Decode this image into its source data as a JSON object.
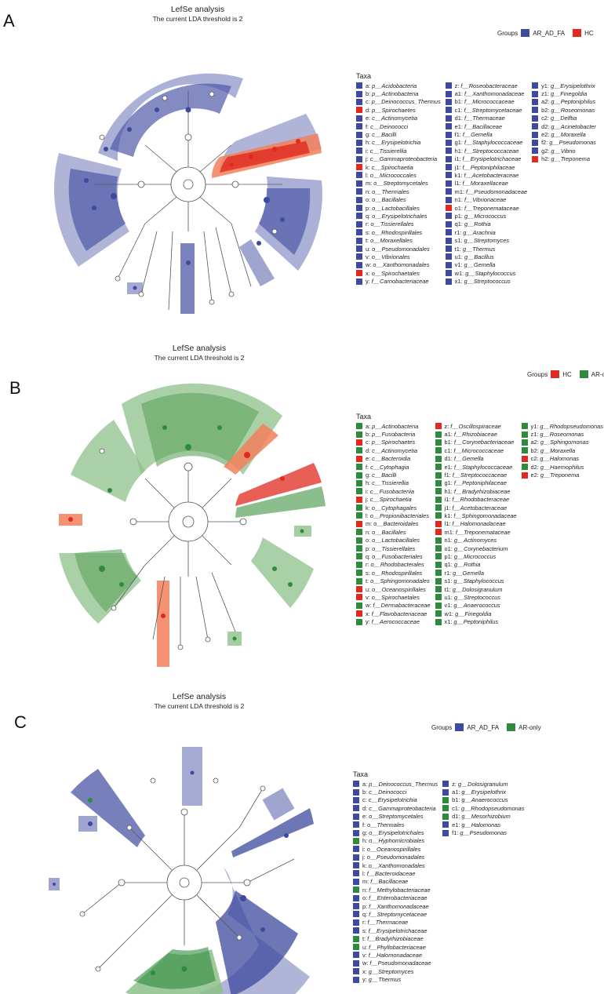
{
  "colors": {
    "blue": "#3d4a9e",
    "red": "#e0291f",
    "green": "#2e8b3e",
    "blue_band": "#8f95c8",
    "red_band": "#f2805c",
    "green_band": "#8dc08a"
  },
  "panels": [
    {
      "label": "A",
      "title": "LefSe analysis",
      "subtitle": "The current LDA threshold is 2",
      "groups_label": "Groups",
      "groups": [
        {
          "name": "AR_AD_FA",
          "color": "#3d4a9e"
        },
        {
          "name": "HC",
          "color": "#e0291f"
        }
      ],
      "taxa_header": "Taxa",
      "taxa": [
        [
          [
            "a:",
            "p__Acidobacteria",
            "b"
          ],
          [
            "b:",
            "p__Actinobacteria",
            "b"
          ],
          [
            "c:",
            "p__Deinococcus_Thermus",
            "b"
          ],
          [
            "d:",
            "p__Spirochaetes",
            "r"
          ],
          [
            "e:",
            "c__Actinomycetia",
            "b"
          ],
          [
            "f:",
            "c__Deinococci",
            "b"
          ],
          [
            "g:",
            "c__Bacilli",
            "b"
          ],
          [
            "h:",
            "c__Erysipelotrichia",
            "b"
          ],
          [
            "i:",
            "c__Tissierellia",
            "b"
          ],
          [
            "j:",
            "c__Gammaproteobacteria",
            "b"
          ],
          [
            "k:",
            "c__Spirochaetia",
            "r"
          ],
          [
            "l:",
            "o__Micrococcales",
            "b"
          ],
          [
            "m:",
            "o__Streptomycetales",
            "b"
          ],
          [
            "n:",
            "o__Thermales",
            "b"
          ],
          [
            "o:",
            "o__Bacillales",
            "b"
          ],
          [
            "p:",
            "o__Lactobacillales",
            "b"
          ],
          [
            "q:",
            "o__Erysipelotrichales",
            "b"
          ],
          [
            "r:",
            "o__Tissierellales",
            "b"
          ],
          [
            "s:",
            "o__Rhodospirillales",
            "b"
          ],
          [
            "t:",
            "o__Moraxellales",
            "b"
          ],
          [
            "u:",
            "o__Pseudomonadales",
            "b"
          ],
          [
            "v:",
            "o__Vibrionales",
            "b"
          ],
          [
            "w:",
            "o__Xanthomonadales",
            "b"
          ],
          [
            "x:",
            "o__Spirochaetales",
            "r"
          ],
          [
            "y:",
            "f__Carnobacteriaceae",
            "b"
          ]
        ],
        [
          [
            "z:",
            "f__Roseobacteraceae",
            "b"
          ],
          [
            "a1:",
            "f__Xanthomonadaceae",
            "b"
          ],
          [
            "b1:",
            "f__Micrococcaceae",
            "b"
          ],
          [
            "c1:",
            "f__Streptomycetaceae",
            "b"
          ],
          [
            "d1:",
            "f__Thermaceae",
            "b"
          ],
          [
            "e1:",
            "f__Bacillaceae",
            "b"
          ],
          [
            "f1:",
            "f__Gemella",
            "b"
          ],
          [
            "g1:",
            "f__Staphylococcaceae",
            "b"
          ],
          [
            "h1:",
            "f__Streptococcaceae",
            "b"
          ],
          [
            "i1:",
            "f__Erysipelotrichaceae",
            "b"
          ],
          [
            "j1:",
            "f__Peptoniphilaceae",
            "b"
          ],
          [
            "k1:",
            "f__Acetobacteraceae",
            "b"
          ],
          [
            "l1:",
            "f__Moraxellaceae",
            "b"
          ],
          [
            "m1:",
            "f__Pseudomonadaceae",
            "b"
          ],
          [
            "n1:",
            "f__Vibrionaceae",
            "b"
          ],
          [
            "o1:",
            "f__Treponemataceae",
            "r"
          ],
          [
            "p1:",
            "g__Micrococcus",
            "b"
          ],
          [
            "q1:",
            "g__Rothia",
            "b"
          ],
          [
            "r1:",
            "g__Arachnia",
            "b"
          ],
          [
            "s1:",
            "g__Streptomyces",
            "b"
          ],
          [
            "t1:",
            "g__Thermus",
            "b"
          ],
          [
            "u1:",
            "g__Bacillus",
            "b"
          ],
          [
            "v1:",
            "g__Gemella",
            "b"
          ],
          [
            "w1:",
            "g__Staphylococcus",
            "b"
          ],
          [
            "x1:",
            "g__Streptococcus",
            "b"
          ]
        ],
        [
          [
            "y1:",
            "g__Erysipelothrix",
            "b"
          ],
          [
            "z1:",
            "g__Finegoldia",
            "b"
          ],
          [
            "a2:",
            "g__Peptoniphilus",
            "b"
          ],
          [
            "b2:",
            "g__Roseomonas",
            "b"
          ],
          [
            "c2:",
            "g__Delftia",
            "b"
          ],
          [
            "d2:",
            "g__Acinetobacter",
            "b"
          ],
          [
            "e2:",
            "g__Moraxella",
            "b"
          ],
          [
            "f2:",
            "g__Pseudomonas",
            "b"
          ],
          [
            "g2:",
            "g__Vibrio",
            "b"
          ],
          [
            "h2:",
            "g__Treponema",
            "r"
          ]
        ]
      ]
    },
    {
      "label": "B",
      "title": "LefSe analysis",
      "subtitle": "The current LDA threshold is 2",
      "groups_label": "Groups",
      "groups": [
        {
          "name": "HC",
          "color": "#e0291f"
        },
        {
          "name": "AR-only",
          "color": "#2e8b3e"
        }
      ],
      "taxa_header": "Taxa",
      "taxa": [
        [
          [
            "a:",
            "p__Actinobacteria",
            "g"
          ],
          [
            "b:",
            "p__Fusobacteria",
            "g"
          ],
          [
            "c:",
            "p__Spirochaetes",
            "r"
          ],
          [
            "d:",
            "c__Actinomycetia",
            "g"
          ],
          [
            "e:",
            "c__Bacteroidia",
            "r"
          ],
          [
            "f:",
            "c__Cytophagia",
            "g"
          ],
          [
            "g:",
            "c__Bacilli",
            "g"
          ],
          [
            "h:",
            "c__Tissierellia",
            "g"
          ],
          [
            "i:",
            "c__Fusobacteriia",
            "g"
          ],
          [
            "j:",
            "c__Spirochaetia",
            "r"
          ],
          [
            "k:",
            "o__Cytophagales",
            "g"
          ],
          [
            "l:",
            "o__Propionibacteriales",
            "g"
          ],
          [
            "m:",
            "o__Bacteroidales",
            "r"
          ],
          [
            "n:",
            "o__Bacillales",
            "g"
          ],
          [
            "o:",
            "o__Lactobacillales",
            "g"
          ],
          [
            "p:",
            "o__Tissierellales",
            "g"
          ],
          [
            "q:",
            "o__Fusobacteriales",
            "g"
          ],
          [
            "r:",
            "o__Rhodobacterales",
            "g"
          ],
          [
            "s:",
            "o__Rhodospirillales",
            "g"
          ],
          [
            "t:",
            "o__Sphingomonadales",
            "g"
          ],
          [
            "u:",
            "o__Oceanospirillales",
            "r"
          ],
          [
            "v:",
            "o__Spirochaetales",
            "r"
          ],
          [
            "w:",
            "f__Dermabacteraceae",
            "g"
          ],
          [
            "x:",
            "f__Flavobacteriaceae",
            "r"
          ],
          [
            "y:",
            "f__Aerococcaceae",
            "g"
          ]
        ],
        [
          [
            "z:",
            "f__Oscillospiraceae",
            "r"
          ],
          [
            "a1:",
            "f__Rhizobiaceae",
            "g"
          ],
          [
            "b1:",
            "f__Corynebacteriaceae",
            "g"
          ],
          [
            "c1:",
            "f__Micrococcaceae",
            "g"
          ],
          [
            "d1:",
            "f__Gemella",
            "g"
          ],
          [
            "e1:",
            "f__Staphylococcaceae",
            "g"
          ],
          [
            "f1:",
            "f__Streptococcaceae",
            "g"
          ],
          [
            "g1:",
            "f__Peptoniphilaceae",
            "g"
          ],
          [
            "h1:",
            "f__Bradyrhizobiaceae",
            "g"
          ],
          [
            "i1:",
            "f__Rhodobacteraceae",
            "g"
          ],
          [
            "j1:",
            "f__Acetobacteraceae",
            "g"
          ],
          [
            "k1:",
            "f__Sphingomonadaceae",
            "g"
          ],
          [
            "l1:",
            "f__Halomonadaceae",
            "r"
          ],
          [
            "m1:",
            "f__Treponemataceae",
            "r"
          ],
          [
            "n1:",
            "g__Actinomyces",
            "g"
          ],
          [
            "o1:",
            "g__Corynebacterium",
            "g"
          ],
          [
            "p1:",
            "g__Micrococcus",
            "g"
          ],
          [
            "q1:",
            "g__Rothia",
            "g"
          ],
          [
            "r1:",
            "g__Gemella",
            "g"
          ],
          [
            "s1:",
            "g__Staphylococcus",
            "g"
          ],
          [
            "t1:",
            "g__Dolosigranulum",
            "g"
          ],
          [
            "u1:",
            "g__Streptococcus",
            "g"
          ],
          [
            "v1:",
            "g__Anaerococcus",
            "g"
          ],
          [
            "w1:",
            "g__Finegoldia",
            "g"
          ],
          [
            "x1:",
            "g__Peptoniphilus",
            "g"
          ]
        ],
        [
          [
            "y1:",
            "g__Rhodopseudomonas",
            "g"
          ],
          [
            "z1:",
            "g__Roseomonas",
            "g"
          ],
          [
            "a2:",
            "g__Sphingomonas",
            "g"
          ],
          [
            "b2:",
            "g__Moraxella",
            "g"
          ],
          [
            "c2:",
            "g__Halomonas",
            "r"
          ],
          [
            "d2:",
            "g__Haemophilus",
            "g"
          ],
          [
            "e2:",
            "g__Treponema",
            "r"
          ]
        ]
      ]
    },
    {
      "label": "C",
      "title": "LefSe analysis",
      "subtitle": "The current LDA threshold is 2",
      "groups_label": "Groups",
      "groups": [
        {
          "name": "AR_AD_FA",
          "color": "#3d4a9e"
        },
        {
          "name": "AR-only",
          "color": "#2e8b3e"
        }
      ],
      "taxa_header": "Taxa",
      "taxa": [
        [
          [
            "a:",
            "p__Deinococcus_Thermus",
            "b"
          ],
          [
            "b:",
            "c__Deinococci",
            "b"
          ],
          [
            "c:",
            "c__Erysipelotrichia",
            "b"
          ],
          [
            "d:",
            "c__Gammaproteobacteria",
            "b"
          ],
          [
            "e:",
            "o__Streptomycetales",
            "b"
          ],
          [
            "f:",
            "o__Thermales",
            "b"
          ],
          [
            "g:",
            "o__Erysipelotrichales",
            "b"
          ],
          [
            "h:",
            "o__Hyphomicrobiales",
            "g"
          ],
          [
            "i:",
            "o__Oceanospirillales",
            "b"
          ],
          [
            "j:",
            "o__Pseudomonadales",
            "b"
          ],
          [
            "k:",
            "o__Xanthomonadales",
            "b"
          ],
          [
            "l:",
            "f__Bacteroidaceae",
            "b"
          ],
          [
            "m:",
            "f__Bacillaceae",
            "b"
          ],
          [
            "n:",
            "f__Methylobacteriaceae",
            "g"
          ],
          [
            "o:",
            "f__Enterobacteriaceae",
            "b"
          ],
          [
            "p:",
            "f__Xanthomonadaceae",
            "b"
          ],
          [
            "q:",
            "f__Streptomycetaceae",
            "b"
          ],
          [
            "r:",
            "f__Thermaceae",
            "b"
          ],
          [
            "s:",
            "f__Erysipelotrichaceae",
            "b"
          ],
          [
            "t:",
            "f__Bradyrhizobiaceae",
            "g"
          ],
          [
            "u:",
            "f__Phyllobacteriaceae",
            "g"
          ],
          [
            "v:",
            "f__Halomonadaceae",
            "b"
          ],
          [
            "w:",
            "f__Pseudomonadaceae",
            "b"
          ],
          [
            "x:",
            "g__Streptomyces",
            "b"
          ],
          [
            "y:",
            "g__Thermus",
            "b"
          ]
        ],
        [
          [
            "z:",
            "g__Dolosigranulum",
            "b"
          ],
          [
            "a1:",
            "g__Erysipelothrix",
            "b"
          ],
          [
            "b1:",
            "g__Anaerococcus",
            "g"
          ],
          [
            "c1:",
            "g__Rhodopseudomonas",
            "g"
          ],
          [
            "d1:",
            "g__Mesorhizobium",
            "g"
          ],
          [
            "e1:",
            "g__Halomonas",
            "b"
          ],
          [
            "f1:",
            "g__Pseudomonas",
            "b"
          ]
        ]
      ]
    }
  ]
}
